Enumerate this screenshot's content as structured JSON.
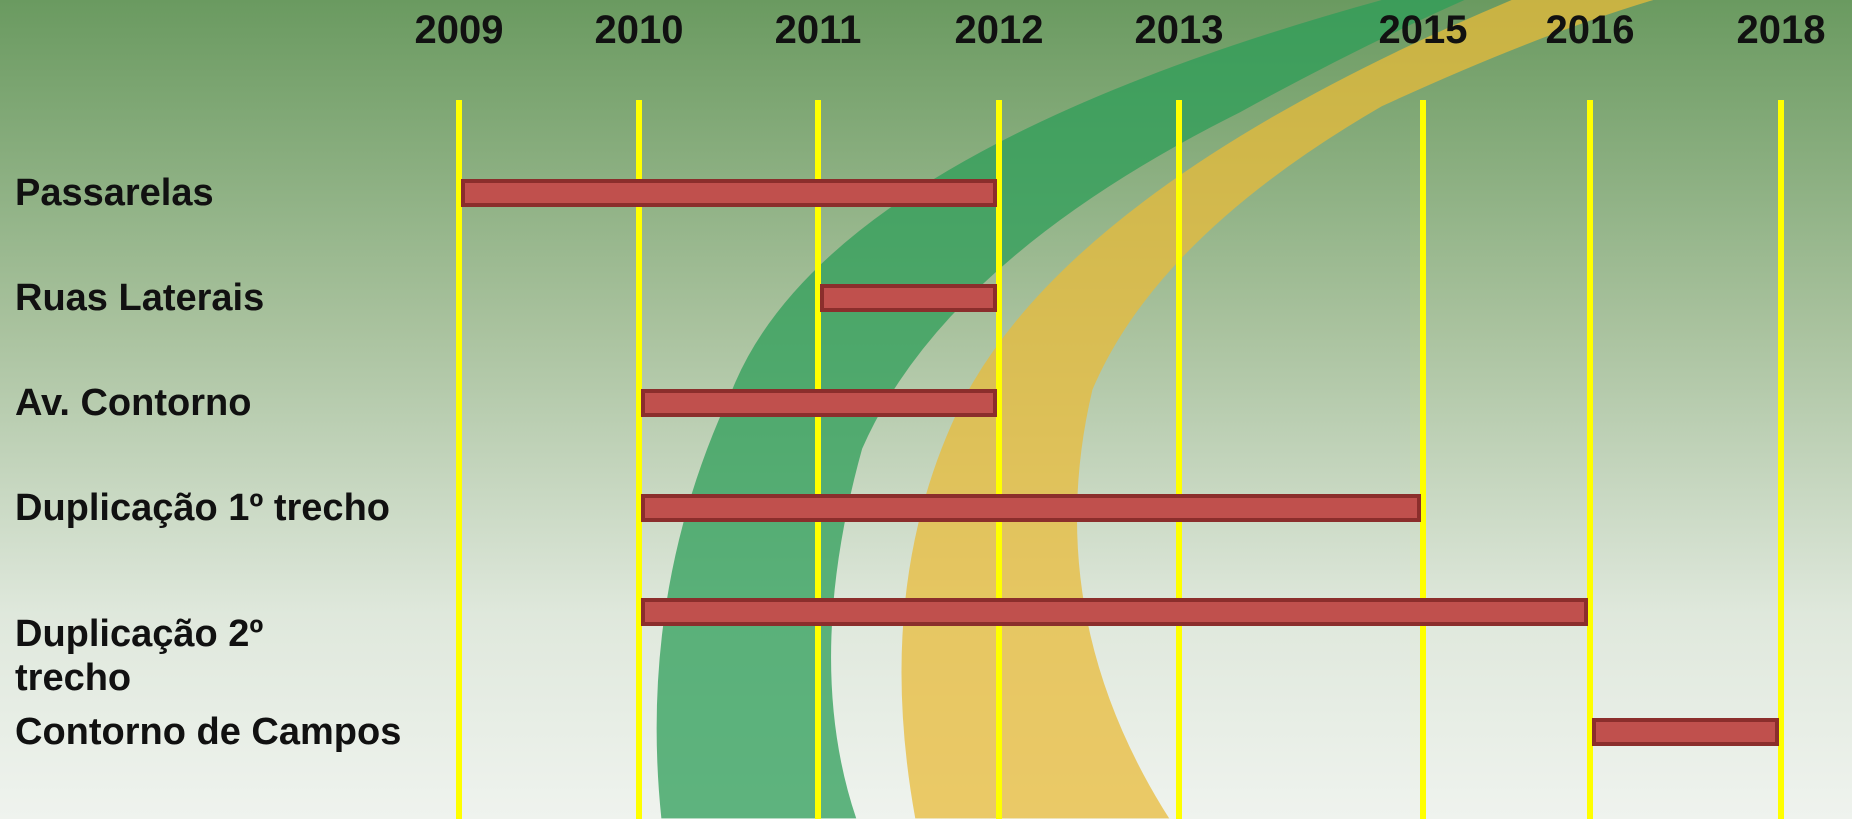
{
  "chart_data": {
    "type": "gantt",
    "categories": [
      "2009",
      "2010",
      "2011",
      "2012",
      "2013",
      "2015",
      "2016",
      "2018"
    ],
    "bar_color": "#c0504d",
    "line_color": "#ffff00",
    "tasks": [
      {
        "name": "Passarelas",
        "start": 2009,
        "end": 2012
      },
      {
        "name": "Ruas Laterais",
        "start": 2011,
        "end": 2012
      },
      {
        "name": "Av. Contorno",
        "start": 2010,
        "end": 2012
      },
      {
        "name": "Duplicação 1º trecho",
        "start": 2010,
        "end": 2015
      },
      {
        "name": "Duplicação 2º trecho",
        "start": 2010,
        "end": 2016
      },
      {
        "name": "Contorno de Campos",
        "start": 2016,
        "end": 2018
      }
    ]
  }
}
